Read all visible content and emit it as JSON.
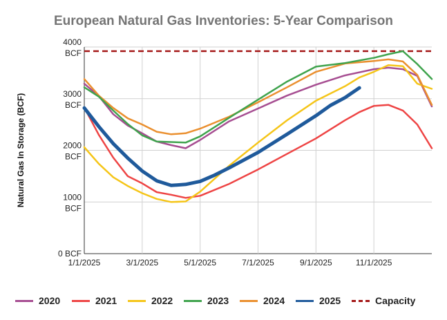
{
  "chart_data": {
    "type": "line",
    "title": "European Natural Gas Inventories: 5-Year Comparison",
    "ylabel": "Natural Gas In Storage (BCF)",
    "xlabel": "",
    "ylim": [
      0,
      4000
    ],
    "x_tick_labels": [
      "1/1/2025",
      "3/1/2025",
      "5/1/2025",
      "7/1/2025",
      "9/1/2025",
      "11/1/2025"
    ],
    "y_ticks": [
      {
        "value": 0,
        "lines": [
          "0 BCF"
        ]
      },
      {
        "value": 1000,
        "lines": [
          "1000",
          "BCF"
        ]
      },
      {
        "value": 2000,
        "lines": [
          "2000",
          "BCF"
        ]
      },
      {
        "value": 3000,
        "lines": [
          "3000",
          "BCF"
        ]
      },
      {
        "value": 4000,
        "lines": [
          "4000",
          "BCF"
        ]
      }
    ],
    "x_unit": "month index (0 = Jan 1, 12 = Dec 31)",
    "series": [
      {
        "name": "2020",
        "color": "#a64d91",
        "x": [
          0,
          0.5,
          1,
          1.5,
          2,
          2.5,
          3,
          3.5,
          4,
          5,
          6,
          7,
          8,
          9,
          10,
          10.5,
          11,
          11.5,
          12
        ],
        "values": [
          3290,
          3050,
          2700,
          2480,
          2330,
          2170,
          2100,
          2040,
          2200,
          2560,
          2810,
          3060,
          3270,
          3450,
          3570,
          3600,
          3570,
          3440,
          2850
        ]
      },
      {
        "name": "2021",
        "color": "#ee4444",
        "x": [
          0,
          0.5,
          1,
          1.5,
          2,
          2.5,
          3,
          3.5,
          4,
          5,
          6,
          7,
          8,
          9,
          9.5,
          10,
          10.5,
          11,
          11.5,
          12
        ],
        "values": [
          2830,
          2300,
          1860,
          1500,
          1360,
          1190,
          1140,
          1080,
          1120,
          1350,
          1630,
          1930,
          2230,
          2580,
          2740,
          2860,
          2880,
          2770,
          2500,
          2040
        ]
      },
      {
        "name": "2022",
        "color": "#f5c518",
        "x": [
          0,
          0.5,
          1,
          1.5,
          2,
          2.5,
          3,
          3.5,
          4,
          5,
          6,
          7,
          8,
          9,
          9.5,
          10,
          10.5,
          11,
          11.5,
          12
        ],
        "values": [
          2060,
          1740,
          1480,
          1310,
          1170,
          1060,
          1000,
          1010,
          1200,
          1700,
          2150,
          2580,
          2960,
          3240,
          3410,
          3520,
          3650,
          3630,
          3290,
          3190
        ]
      },
      {
        "name": "2023",
        "color": "#3fa34d",
        "x": [
          0,
          0.5,
          1,
          1.5,
          2,
          2.5,
          3,
          3.5,
          4,
          5,
          6,
          7,
          8,
          9,
          10,
          10.5,
          11,
          11.5,
          12
        ],
        "values": [
          3220,
          3040,
          2770,
          2510,
          2290,
          2170,
          2160,
          2150,
          2270,
          2630,
          2980,
          3330,
          3620,
          3690,
          3790,
          3860,
          3920,
          3670,
          3380
        ]
      },
      {
        "name": "2024",
        "color": "#ea8f2e",
        "x": [
          0,
          0.5,
          1,
          1.5,
          2,
          2.5,
          3,
          3.5,
          4,
          5,
          6,
          7,
          8,
          9,
          10,
          10.5,
          11,
          11.5,
          12
        ],
        "values": [
          3380,
          3060,
          2820,
          2620,
          2500,
          2360,
          2310,
          2330,
          2420,
          2650,
          2930,
          3220,
          3520,
          3680,
          3730,
          3760,
          3720,
          3460,
          2880
        ]
      },
      {
        "name": "2025",
        "color": "#1f5a9b",
        "x": [
          0,
          0.5,
          1,
          1.5,
          2,
          2.5,
          3,
          3.5,
          4,
          4.5,
          5,
          6,
          7,
          8,
          8.5,
          9,
          9.5
        ],
        "values": [
          2820,
          2460,
          2130,
          1850,
          1600,
          1410,
          1320,
          1340,
          1400,
          1520,
          1660,
          1960,
          2310,
          2670,
          2870,
          3020,
          3210
        ]
      },
      {
        "name": "Capacity",
        "color": "#a31515",
        "dashed": true,
        "x": [
          0,
          12
        ],
        "values": [
          3920,
          3920
        ]
      }
    ]
  }
}
